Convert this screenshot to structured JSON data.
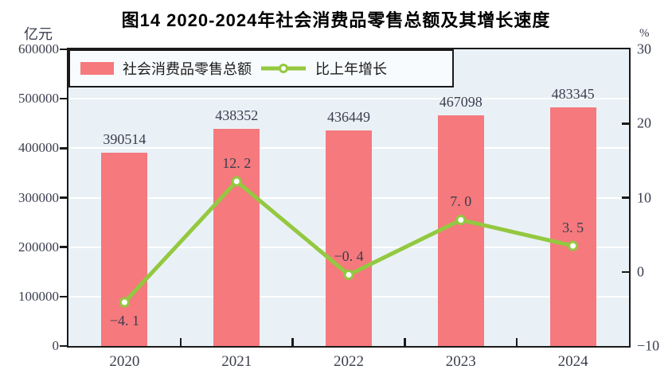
{
  "title": "图14  2020-2024年社会消费品零售总额及其增长速度",
  "left_axis": {
    "unit": "亿元",
    "min": 0,
    "max": 600000,
    "step": 100000
  },
  "right_axis": {
    "unit": "%",
    "min": -10,
    "max": 30,
    "step": 10,
    "inner_ticks": [
      0,
      10,
      20
    ]
  },
  "legend": [
    {
      "label": "社会消费品零售总额",
      "marker": "bar-swatch"
    },
    {
      "label": "比上年增长",
      "marker": "line-marker"
    }
  ],
  "chart_data": {
    "type": "bar+line",
    "title": "图14  2020-2024年社会消费品零售总额及其增长速度",
    "categories": [
      "2020",
      "2021",
      "2022",
      "2023",
      "2024"
    ],
    "series": [
      {
        "name": "社会消费品零售总额",
        "type": "bar",
        "axis": "left",
        "unit": "亿元",
        "values": [
          390514,
          438352,
          436449,
          467098,
          483345
        ],
        "labels": [
          "390514",
          "438352",
          "436449",
          "467098",
          "483345"
        ]
      },
      {
        "name": "比上年增长",
        "type": "line",
        "axis": "right",
        "unit": "%",
        "values": [
          -4.1,
          12.2,
          -0.4,
          7.0,
          3.5
        ],
        "labels": [
          "−4. 1",
          "12. 2",
          "−0. 4",
          "7. 0",
          "3. 5"
        ],
        "label_positions": [
          "below",
          "above",
          "above",
          "above",
          "above"
        ]
      }
    ],
    "left_ylim": [
      0,
      600000
    ],
    "right_ylim": [
      -10,
      30
    ],
    "grid": true,
    "gridline_color": "#FFFFFF",
    "legend_position": "top-left"
  },
  "colors": {
    "bar": "#F5797D",
    "line": "#94C840",
    "marker_fill": "#FFFFFF",
    "plot_bg": "#E9F1F6",
    "legend_bg": "#F8FBFD",
    "gridline": "#FFFFFF",
    "axis": "#1A1A1A",
    "label_text": "#3A3D4E",
    "title_text": "#000000"
  }
}
